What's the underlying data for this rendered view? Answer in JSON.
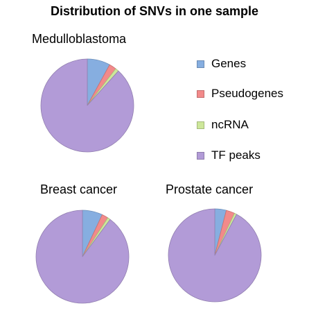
{
  "chart_data": {
    "type": "pie",
    "title": "Distribution of SNVs in one sample",
    "categories": [
      "Genes",
      "Pseudogenes",
      "ncRNA",
      "TF peaks"
    ],
    "colors": [
      "#86aee0",
      "#f28a8a",
      "#cde79a",
      "#b29bd7"
    ],
    "legend_position": "right",
    "series": [
      {
        "name": "Medulloblastoma",
        "values": [
          8,
          2.5,
          1.2,
          88.3
        ]
      },
      {
        "name": "Breast cancer",
        "values": [
          7,
          2.2,
          1.0,
          89.8
        ]
      },
      {
        "name": "Prostate cancer",
        "values": [
          4,
          3,
          0.8,
          92.2
        ]
      }
    ]
  }
}
